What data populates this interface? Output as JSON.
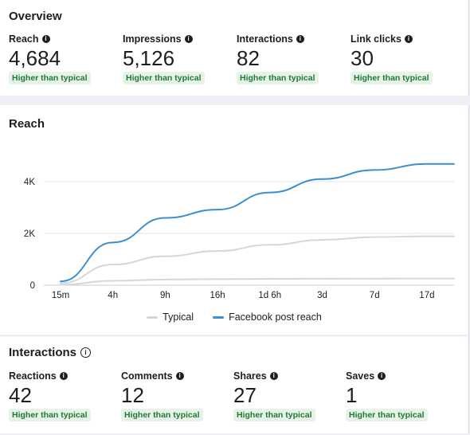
{
  "overview": {
    "title": "Overview",
    "metrics": [
      {
        "label": "Reach",
        "value": "4,684",
        "badge": "Higher than typical"
      },
      {
        "label": "Impressions",
        "value": "5,126",
        "badge": "Higher than typical"
      },
      {
        "label": "Interactions",
        "value": "82",
        "badge": "Higher than typical"
      },
      {
        "label": "Link clicks",
        "value": "30",
        "badge": "Higher than typical"
      }
    ]
  },
  "reach": {
    "title": "Reach",
    "legend": [
      {
        "label": "Typical",
        "color": "#d5d7dc"
      },
      {
        "label": "Facebook post reach",
        "color": "#3b8fd0"
      }
    ]
  },
  "chart_data": {
    "type": "line",
    "title": "Reach",
    "x": [
      "15m",
      "4h",
      "9h",
      "16h",
      "1d 6h",
      "3d",
      "7d",
      "17d"
    ],
    "yticks": [
      "0",
      "2K",
      "4K"
    ],
    "ylim": [
      0,
      4000
    ],
    "grid": true,
    "legend_position": "bottom",
    "series": [
      {
        "name": "Facebook post reach",
        "color": "#3b8fd0",
        "values": [
          150,
          1650,
          2600,
          2920,
          3580,
          4100,
          4450,
          4684
        ]
      },
      {
        "name": "Typical",
        "color": "#d5d7dc",
        "values": [
          80,
          800,
          1120,
          1320,
          1560,
          1750,
          1860,
          1890
        ]
      },
      {
        "name": "Typical",
        "color": "#d5d7dc",
        "values": [
          20,
          170,
          220,
          235,
          245,
          250,
          255,
          258
        ]
      }
    ]
  },
  "interactions": {
    "title": "Interactions",
    "metrics": [
      {
        "label": "Reactions",
        "value": "42",
        "badge": "Higher than typical"
      },
      {
        "label": "Comments",
        "value": "12",
        "badge": "Higher than typical"
      },
      {
        "label": "Shares",
        "value": "27",
        "badge": "Higher than typical"
      },
      {
        "label": "Saves",
        "value": "1",
        "badge": "Higher than typical"
      }
    ]
  }
}
